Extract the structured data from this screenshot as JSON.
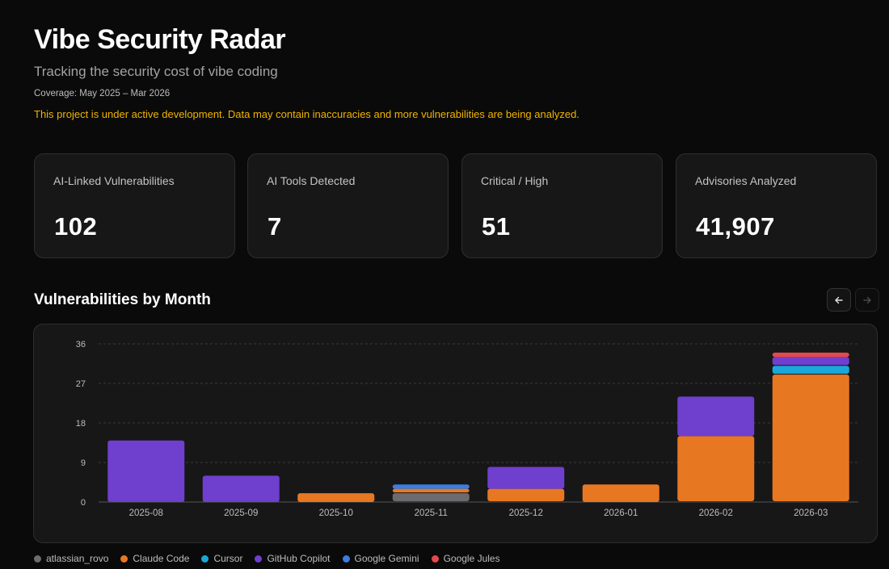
{
  "header": {
    "title": "Vibe Security Radar",
    "subtitle": "Tracking the security cost of vibe coding",
    "coverage": "Coverage: May 2025 – Mar 2026",
    "notice": "This project is under active development. Data may contain inaccuracies and more vulnerabilities are being analyzed."
  },
  "stats": [
    {
      "label": "AI-Linked Vulnerabilities",
      "value": "102"
    },
    {
      "label": "AI Tools Detected",
      "value": "7"
    },
    {
      "label": "Critical / High",
      "value": "51"
    },
    {
      "label": "Advisories Analyzed",
      "value": "41,907"
    }
  ],
  "section": {
    "title": "Vulnerabilities by Month",
    "prev_icon": "arrow-left-icon",
    "next_icon": "arrow-right-icon"
  },
  "colors": {
    "warning": "#f0b400",
    "atlassian_rovo": "#6b6b70",
    "claude_code": "#e87722",
    "cursor": "#1aa7d9",
    "github_copilot": "#6f3fce",
    "google_gemini": "#3b7de0",
    "google_jules": "#e5484d"
  },
  "chart_data": {
    "type": "bar",
    "stacked": true,
    "title": "Vulnerabilities by Month",
    "xlabel": "",
    "ylabel": "",
    "ylim": [
      0,
      36
    ],
    "yticks": [
      0,
      9,
      18,
      27,
      36
    ],
    "grid": true,
    "legend_position": "bottom-left",
    "categories": [
      "2025-08",
      "2025-09",
      "2025-10",
      "2025-11",
      "2025-12",
      "2026-01",
      "2026-02",
      "2026-03"
    ],
    "series": [
      {
        "name": "atlassian_rovo",
        "color": "#6b6b70",
        "values": [
          0,
          0,
          0,
          2,
          0,
          0,
          0,
          0
        ]
      },
      {
        "name": "Claude Code",
        "color": "#e87722",
        "values": [
          0,
          0,
          2,
          1,
          3,
          4,
          15,
          29
        ]
      },
      {
        "name": "Cursor",
        "color": "#1aa7d9",
        "values": [
          0,
          0,
          0,
          0,
          0,
          0,
          0,
          2
        ]
      },
      {
        "name": "GitHub Copilot",
        "color": "#6f3fce",
        "values": [
          14,
          6,
          0,
          0,
          5,
          0,
          9,
          2
        ]
      },
      {
        "name": "Google Gemini",
        "color": "#3b7de0",
        "values": [
          0,
          0,
          0,
          1,
          0,
          0,
          0,
          0
        ]
      },
      {
        "name": "Google Jules",
        "color": "#e5484d",
        "values": [
          0,
          0,
          0,
          0,
          0,
          0,
          0,
          1
        ]
      }
    ]
  }
}
